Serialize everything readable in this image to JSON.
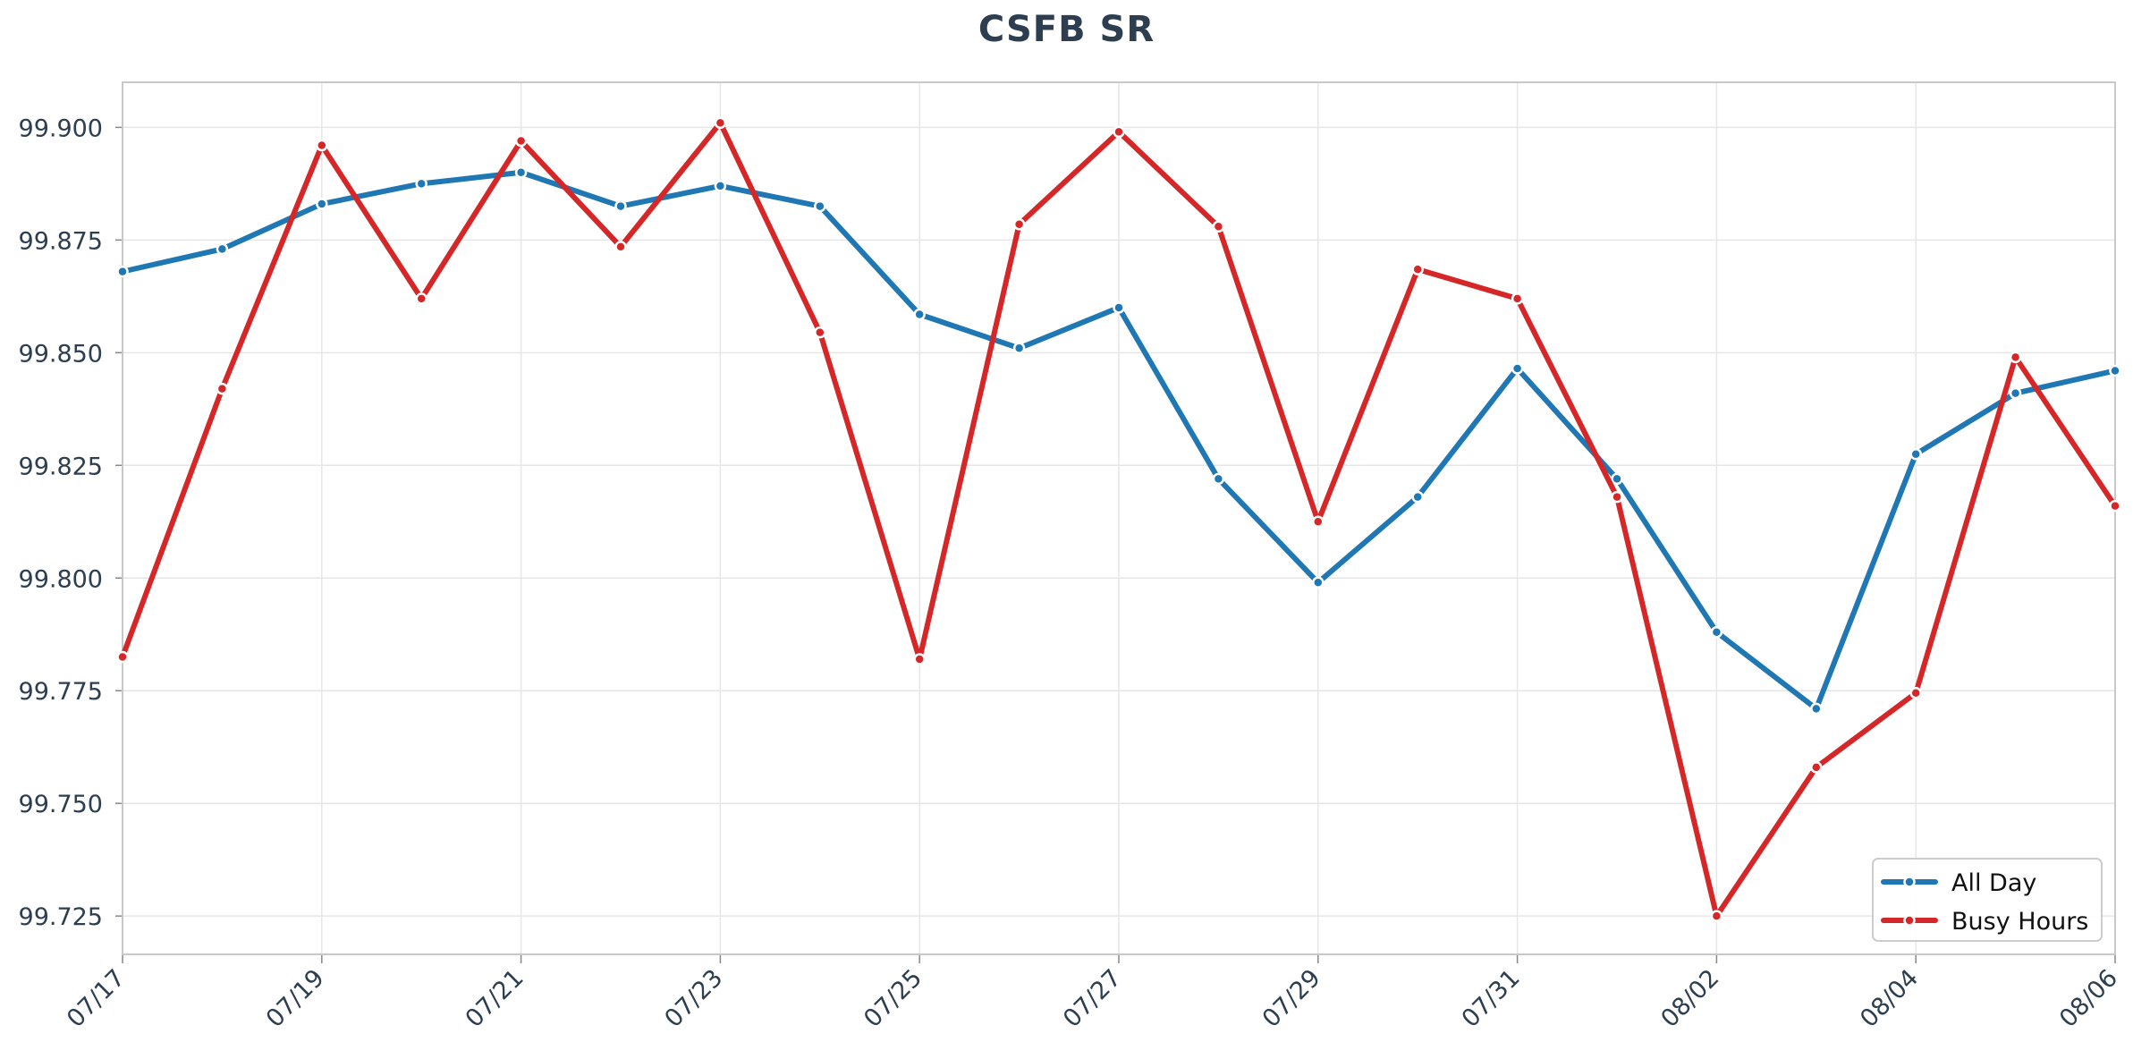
{
  "chart_data": {
    "type": "line",
    "title": "CSFB SR",
    "xlabel": "",
    "ylabel": "",
    "x": [
      "07/17",
      "07/18",
      "07/19",
      "07/20",
      "07/21",
      "07/22",
      "07/23",
      "07/24",
      "07/25",
      "07/26",
      "07/27",
      "07/28",
      "07/29",
      "07/30",
      "07/31",
      "08/01",
      "08/02",
      "08/03",
      "08/04",
      "08/05",
      "08/06"
    ],
    "x_tick_labels": [
      "07/17",
      "07/19",
      "07/21",
      "07/23",
      "07/25",
      "07/27",
      "07/29",
      "07/31",
      "08/02",
      "08/04",
      "08/06"
    ],
    "ylim": [
      99.7165,
      99.91
    ],
    "y_ticks": [
      99.725,
      99.75,
      99.775,
      99.8,
      99.825,
      99.85,
      99.875,
      99.9
    ],
    "y_tick_labels": [
      "99.725",
      "99.750",
      "99.775",
      "99.800",
      "99.825",
      "99.850",
      "99.875",
      "99.900"
    ],
    "grid": true,
    "legend_position": "bottom-right",
    "series": [
      {
        "name": "All Day",
        "color": "#1f77b4",
        "values": [
          99.868,
          99.873,
          99.883,
          99.8875,
          99.89,
          99.8825,
          99.887,
          99.8825,
          99.8585,
          99.851,
          99.86,
          99.822,
          99.799,
          99.818,
          99.8465,
          99.822,
          99.788,
          99.771,
          99.8275,
          99.841,
          99.846
        ]
      },
      {
        "name": "Busy Hours",
        "color": "#d62728",
        "values": [
          99.7825,
          99.842,
          99.896,
          99.862,
          99.897,
          99.8735,
          99.901,
          99.8545,
          99.782,
          99.8785,
          99.899,
          99.878,
          99.8125,
          99.8685,
          99.862,
          99.818,
          99.725,
          99.758,
          99.7745,
          99.849,
          99.816
        ]
      }
    ]
  }
}
